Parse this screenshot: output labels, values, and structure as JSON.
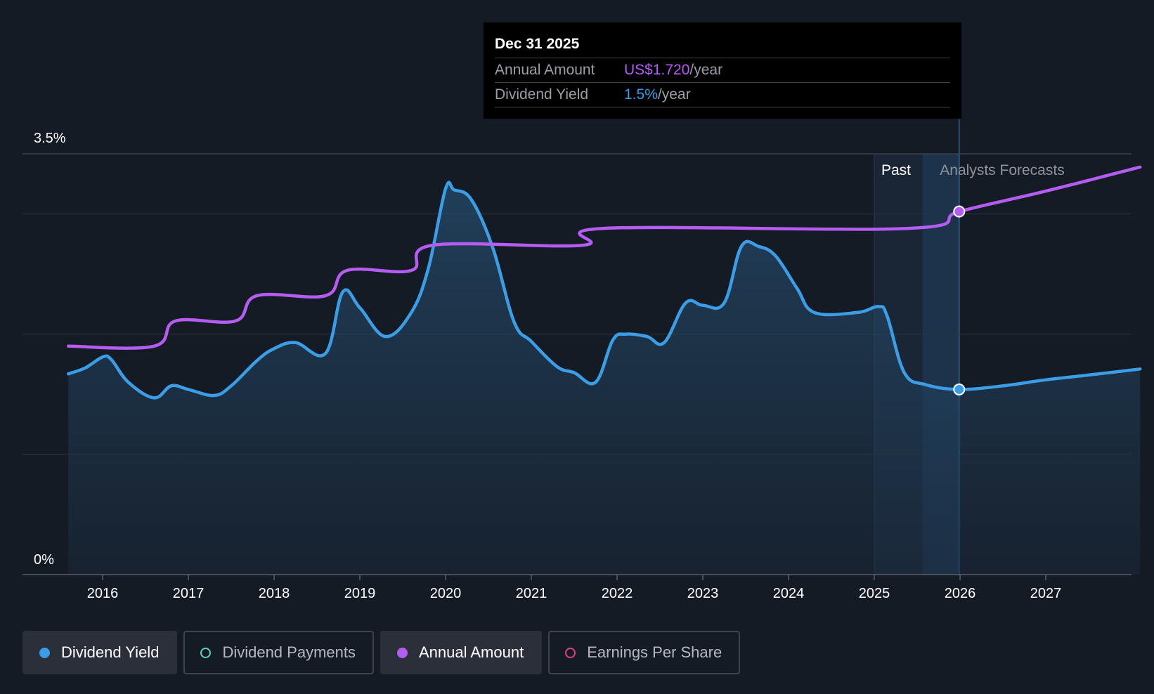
{
  "tooltip": {
    "date": "Dec 31 2025",
    "rows": [
      {
        "label": "Annual Amount",
        "value": "US$1.720",
        "unit": "/year"
      },
      {
        "label": "Dividend Yield",
        "value": "1.5%",
        "unit": "/year"
      }
    ]
  },
  "regions": {
    "past_label": "Past",
    "forecast_label": "Analysts Forecasts"
  },
  "legend": [
    {
      "label": "Dividend Yield",
      "active": true,
      "color": "#3a9de6",
      "filled": true
    },
    {
      "label": "Dividend Payments",
      "active": false,
      "color": "#5fd0c2",
      "filled": false
    },
    {
      "label": "Annual Amount",
      "active": true,
      "color": "#b55cf2",
      "filled": true
    },
    {
      "label": "Earnings Per Share",
      "active": false,
      "color": "#e0427e",
      "filled": false
    }
  ],
  "colors": {
    "background": "#151b25",
    "yield": "#3a9de6",
    "annual": "#b55cf2",
    "grid": "#2c333d"
  },
  "chart_data": {
    "type": "line",
    "ylim": [
      0,
      3.5
    ],
    "y_tick_labels": [
      {
        "value": 3.5,
        "label": "3.5%"
      },
      {
        "value": 0,
        "label": "0%"
      }
    ],
    "gridlines": [
      3.5,
      3.0,
      2.0,
      1.0
    ],
    "x_ticks": [
      "2016",
      "2017",
      "2018",
      "2019",
      "2020",
      "2021",
      "2022",
      "2023",
      "2024",
      "2025",
      "2026",
      "2027"
    ],
    "xlim": [
      2015.5,
      2028.1
    ],
    "forecast_start": 2025.99,
    "past_band_start": 2025.0,
    "highlight_x": 2025.99,
    "series": [
      {
        "name": "Dividend Yield",
        "color": "#3a9de6",
        "fill": true,
        "points": [
          [
            2015.6,
            1.67
          ],
          [
            2015.8,
            1.72
          ],
          [
            2016.0,
            1.81
          ],
          [
            2016.1,
            1.79
          ],
          [
            2016.3,
            1.6
          ],
          [
            2016.6,
            1.47
          ],
          [
            2016.8,
            1.57
          ],
          [
            2017.0,
            1.54
          ],
          [
            2017.3,
            1.49
          ],
          [
            2017.5,
            1.57
          ],
          [
            2017.8,
            1.78
          ],
          [
            2018.0,
            1.88
          ],
          [
            2018.25,
            1.93
          ],
          [
            2018.6,
            1.84
          ],
          [
            2018.8,
            2.35
          ],
          [
            2019.0,
            2.22
          ],
          [
            2019.3,
            1.98
          ],
          [
            2019.6,
            2.18
          ],
          [
            2019.8,
            2.55
          ],
          [
            2020.0,
            3.21
          ],
          [
            2020.1,
            3.2
          ],
          [
            2020.3,
            3.12
          ],
          [
            2020.55,
            2.72
          ],
          [
            2020.8,
            2.1
          ],
          [
            2021.0,
            1.94
          ],
          [
            2021.3,
            1.73
          ],
          [
            2021.5,
            1.68
          ],
          [
            2021.75,
            1.6
          ],
          [
            2021.95,
            1.95
          ],
          [
            2022.1,
            2.0
          ],
          [
            2022.35,
            1.98
          ],
          [
            2022.55,
            1.93
          ],
          [
            2022.8,
            2.26
          ],
          [
            2023.0,
            2.24
          ],
          [
            2023.25,
            2.26
          ],
          [
            2023.45,
            2.73
          ],
          [
            2023.65,
            2.73
          ],
          [
            2023.85,
            2.65
          ],
          [
            2024.1,
            2.38
          ],
          [
            2024.3,
            2.18
          ],
          [
            2024.8,
            2.18
          ],
          [
            2025.05,
            2.23
          ],
          [
            2025.15,
            2.15
          ],
          [
            2025.35,
            1.68
          ],
          [
            2025.6,
            1.58
          ],
          [
            2025.99,
            1.54
          ],
          [
            2026.5,
            1.57
          ],
          [
            2027.0,
            1.62
          ],
          [
            2027.5,
            1.66
          ],
          [
            2028.1,
            1.71
          ]
        ]
      },
      {
        "name": "Annual Amount",
        "color": "#b55cf2",
        "fill": false,
        "points": [
          [
            2015.6,
            1.9
          ],
          [
            2016.6,
            1.9
          ],
          [
            2016.85,
            2.11
          ],
          [
            2017.55,
            2.11
          ],
          [
            2017.8,
            2.32
          ],
          [
            2018.6,
            2.32
          ],
          [
            2018.85,
            2.53
          ],
          [
            2019.6,
            2.53
          ],
          [
            2019.85,
            2.74
          ],
          [
            2021.6,
            2.74
          ],
          [
            2021.85,
            2.88
          ],
          [
            2025.4,
            2.88
          ],
          [
            2025.99,
            3.02
          ],
          [
            2027.0,
            3.19
          ],
          [
            2028.1,
            3.39
          ]
        ]
      }
    ]
  }
}
